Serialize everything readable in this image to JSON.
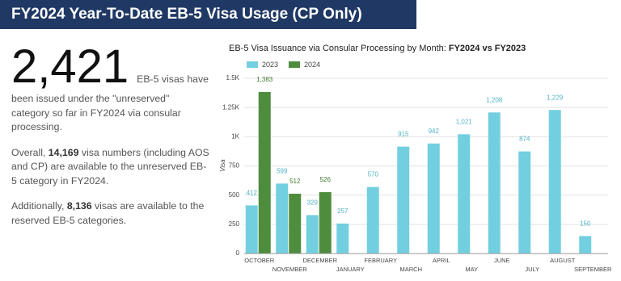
{
  "header": {
    "title": "FY2024 Year-To-Date EB-5 Visa Usage (CP Only)"
  },
  "summary": {
    "big_number": "2,421",
    "paragraphs": [
      {
        "parts": [
          "EB-5 visas have been issued under the \"unreserved\" category so far in FY2024 via consular processing."
        ]
      },
      {
        "parts": [
          "Overall, ",
          "14,169",
          " visa numbers (including AOS and CP) are available to the unreserved EB-5 category in FY2024."
        ]
      },
      {
        "parts": [
          "Additionally, ",
          "8,136",
          " visas are available to the reserved EB-5 categories."
        ]
      }
    ]
  },
  "chart_data": {
    "type": "bar",
    "title": "EB-5 Visa Issuance via Consular Processing by Month: ",
    "title_bold": "FY2024 vs FY2023",
    "y_label": "Visa",
    "categories": [
      "OCTOBER",
      "NOVEMBER",
      "DECEMBER",
      "JANUARY",
      "FEBRUARY",
      "MARCH",
      "APRIL",
      "MAY",
      "JUNE",
      "JULY",
      "AUGUST",
      "SEPTEMBER"
    ],
    "series": [
      {
        "name": "2023",
        "color": "#72cfe0",
        "values": [
          412,
          599,
          329,
          257,
          570,
          915,
          942,
          1021,
          1208,
          874,
          1229,
          150
        ],
        "value_labels": [
          "412",
          "599",
          "329",
          "257",
          "570",
          "915",
          "942",
          "1,021",
          "1,208",
          "874",
          "1,229",
          "150"
        ]
      },
      {
        "name": "2024",
        "color": "#4e8c3e",
        "values": [
          1383,
          512,
          526,
          null,
          null,
          null,
          null,
          null,
          null,
          null,
          null,
          null
        ],
        "value_labels": [
          "1,383",
          "512",
          "526",
          null,
          null,
          null,
          null,
          null,
          null,
          null,
          null,
          null
        ]
      }
    ],
    "ylim": [
      0,
      1500
    ],
    "yticks": [
      0,
      250,
      500,
      750,
      {
        "value": 1000,
        "label": "1K"
      },
      {
        "value": 1250,
        "label": "1.25K"
      },
      {
        "value": 1500,
        "label": "1.5K"
      }
    ],
    "grid": true,
    "legend": "top"
  }
}
